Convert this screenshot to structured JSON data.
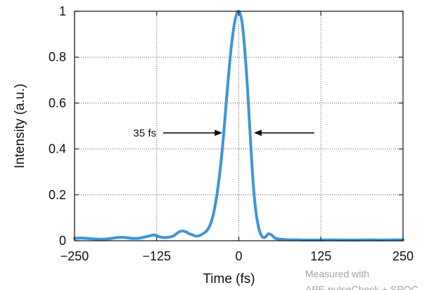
{
  "chart_data": {
    "type": "line",
    "xlabel": "Time (fs)",
    "ylabel": "Intensity (a.u.)",
    "xlim": [
      -250,
      250
    ],
    "ylim": [
      0,
      1
    ],
    "x_ticks": [
      -250,
      -125,
      0,
      125,
      250
    ],
    "x_tick_labels": [
      "−250",
      "−125",
      "0",
      "125",
      "250"
    ],
    "y_ticks": [
      0,
      0.2,
      0.4,
      0.6,
      0.8,
      1
    ],
    "y_tick_labels": [
      "0",
      "0.2",
      "0.4",
      "0.6",
      "0.8",
      "1"
    ],
    "grid": true,
    "line_color": "#3f95d6",
    "series": [
      {
        "x": [
          -250,
          -240,
          -230,
          -220,
          -210,
          -200,
          -190,
          -180,
          -170,
          -160,
          -150,
          -140,
          -130,
          -125,
          -118,
          -110,
          -100,
          -95,
          -90,
          -85,
          -80,
          -75,
          -70,
          -65,
          -60,
          -55,
          -50,
          -45,
          -40,
          -35,
          -30,
          -25,
          -20,
          -15,
          -10,
          -5,
          0,
          5,
          10,
          15,
          20,
          25,
          30,
          35,
          40,
          45,
          50,
          55,
          60,
          65,
          70,
          80,
          90,
          100,
          110,
          125,
          140,
          160,
          180,
          200,
          220,
          250
        ],
        "y": [
          0.01,
          0.012,
          0.01,
          0.008,
          0.006,
          0.008,
          0.012,
          0.015,
          0.013,
          0.01,
          0.012,
          0.018,
          0.025,
          0.022,
          0.015,
          0.014,
          0.02,
          0.03,
          0.04,
          0.042,
          0.038,
          0.03,
          0.025,
          0.02,
          0.022,
          0.03,
          0.04,
          0.06,
          0.1,
          0.17,
          0.27,
          0.4,
          0.57,
          0.74,
          0.88,
          0.97,
          1.0,
          0.95,
          0.8,
          0.58,
          0.33,
          0.15,
          0.06,
          0.02,
          0.015,
          0.03,
          0.025,
          0.012,
          0.008,
          0.006,
          0.005,
          0.004,
          0.004,
          0.003,
          0.003,
          0.003,
          0.004,
          0.003,
          0.003,
          0.004,
          0.003,
          0.004
        ]
      }
    ],
    "annotations": [
      {
        "text": "35 fs",
        "type": "fwhm_arrows",
        "y": 0.47,
        "left_arrow": [
          -115,
          -25
        ],
        "right_arrow": [
          23,
          115
        ]
      }
    ],
    "credit": [
      "Measured with",
      "APE pulseCheck + SPOC"
    ]
  }
}
